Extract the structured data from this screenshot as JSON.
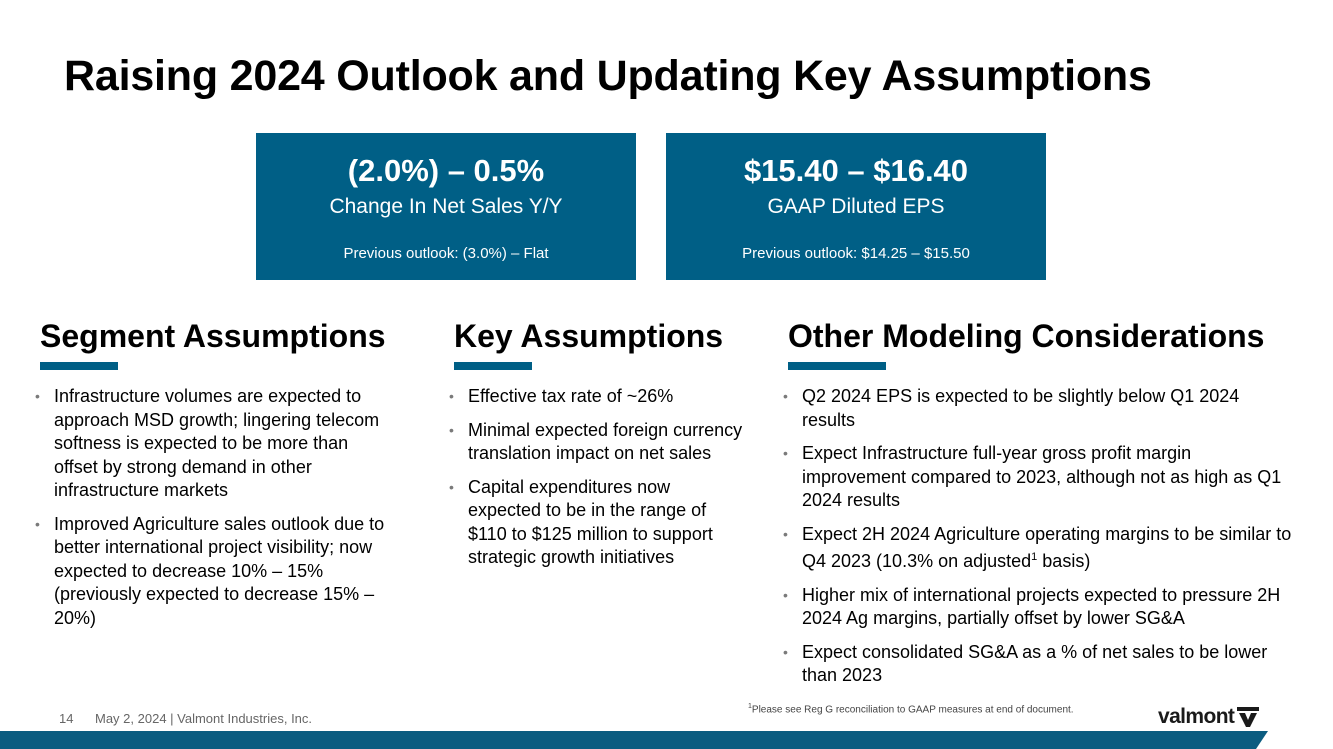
{
  "title": "Raising 2024 Outlook and Updating Key Assumptions",
  "colors": {
    "brand_blue": "#005f86",
    "band_blue": "#0b5c80"
  },
  "kpis": [
    {
      "value": "(2.0%) – 0.5%",
      "label": "Change In Net Sales Y/Y",
      "previous": "Previous outlook: (3.0%) – Flat"
    },
    {
      "value": "$15.40 – $16.40",
      "label": "GAAP Diluted EPS",
      "previous": "Previous outlook: $14.25 – $15.50"
    }
  ],
  "segment": {
    "heading": "Segment Assumptions",
    "bullets": [
      "Infrastructure volumes are expected to approach MSD growth; lingering telecom softness is expected to be more than offset by strong demand in other infrastructure markets",
      "Improved Agriculture sales outlook due to better international project visibility; now expected to decrease 10% – 15% (previously expected to decrease 15% – 20%)"
    ]
  },
  "key": {
    "heading": "Key Assumptions",
    "bullets": [
      "Effective tax rate of ~26%",
      "Minimal expected foreign currency translation impact on net sales",
      "Capital expenditures now expected to be in the range of $110 to $125 million to support strategic growth initiatives"
    ]
  },
  "other": {
    "heading": "Other Modeling Considerations",
    "bullets": [
      "Q2 2024 EPS is expected to be slightly below Q1 2024 results",
      "Expect Infrastructure full-year gross profit margin improvement compared to 2023, although not as high as Q1 2024 results",
      {
        "pre": "Expect 2H 2024 Agriculture operating margins to be similar to Q4 2023 (10.3% on adjusted",
        "sup": "1",
        "post": " basis)"
      },
      "Higher mix of international projects expected to pressure 2H 2024 Ag margins, partially offset by lower SG&A",
      "Expect consolidated SG&A as a % of net sales to be lower than 2023"
    ]
  },
  "footer": {
    "page": "14",
    "text": "May 2, 2024  | Valmont Industries, Inc.",
    "footnote_sup": "1",
    "footnote": "Please see Reg G reconciliation to GAAP measures at end of document."
  },
  "logo": {
    "text": "valmont",
    "icon": "valmont-v-mark-icon"
  }
}
